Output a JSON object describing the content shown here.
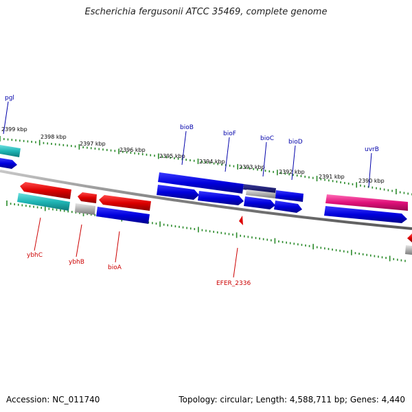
{
  "title": "Escherichia fergusonii ATCC 35469, complete genome",
  "footer": {
    "accession": "Accession: NC_011740",
    "summary": "Topology: circular; Length: 4,588,711 bp; Genes: 4,440"
  },
  "kbp_labels": [
    "2399 kbp",
    "2398 kbp",
    "2397 kbp",
    "2396 kbp",
    "2395 kbp",
    "2394 kbp",
    "2393 kbp",
    "2392 kbp",
    "2391 kbp",
    "2390 kbp"
  ],
  "gene_labels_top": [
    "pgl",
    "bioB",
    "bioF",
    "bioC",
    "bioD",
    "uvrB"
  ],
  "gene_labels_bottom": [
    "ybhC",
    "ybhB",
    "bioA",
    "EFER_2336"
  ],
  "colors": {
    "forward_cds": "#0000dd",
    "reverse_cds": "#dd0000",
    "teal_feature": "#1fb5b5",
    "pink_feature": "#e0107a",
    "grey_feature": "#b0b0b0",
    "backbone": "#888888",
    "tick": "#2a8a2a"
  }
}
